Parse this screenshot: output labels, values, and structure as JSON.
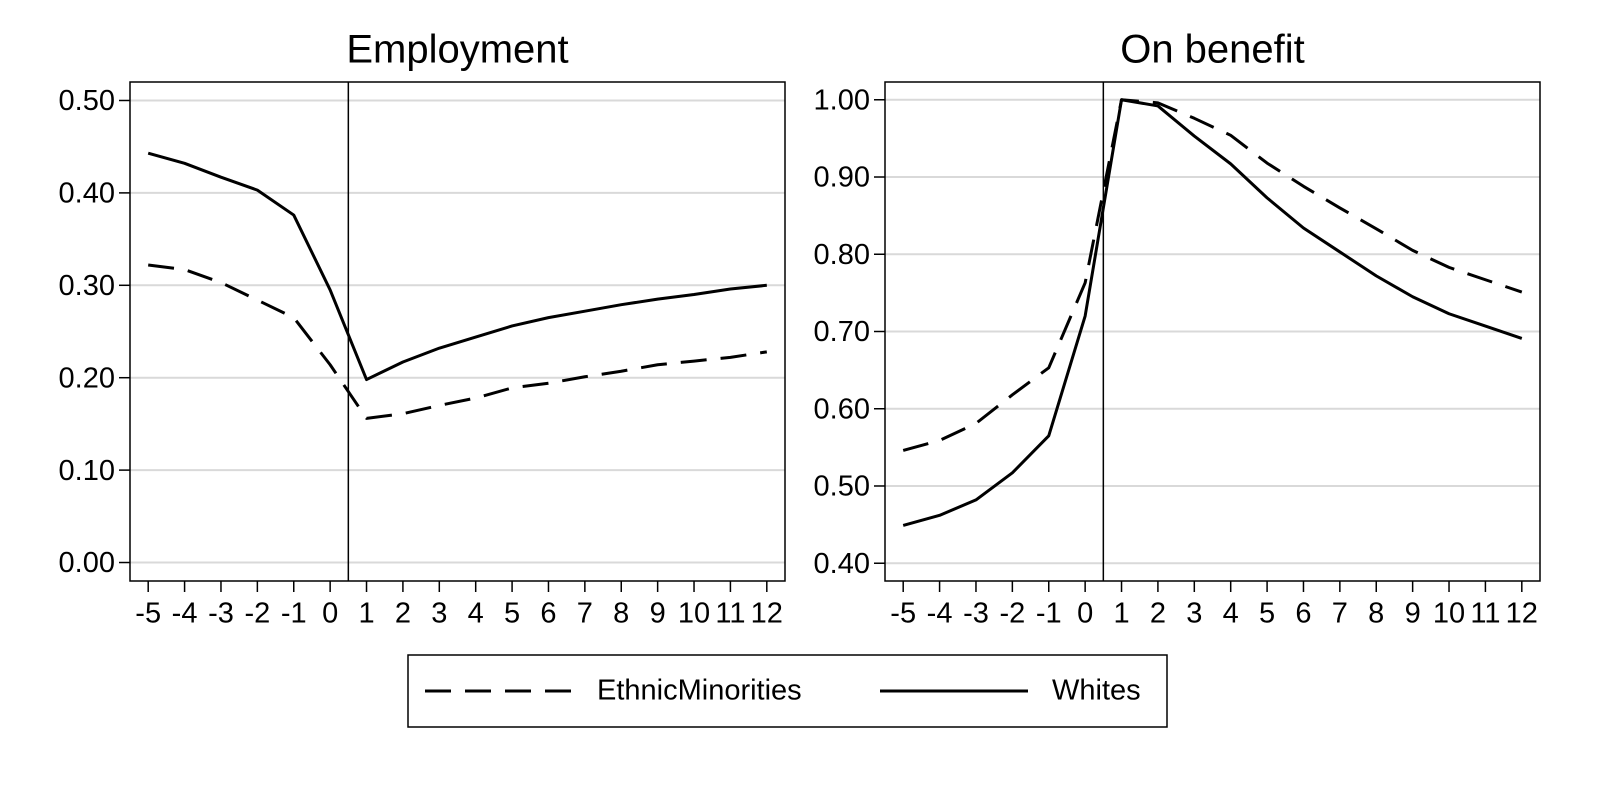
{
  "chart_data": [
    {
      "type": "line",
      "title": "Employment",
      "x": [
        -5,
        -4,
        -3,
        -2,
        -1,
        0,
        1,
        2,
        3,
        4,
        5,
        6,
        7,
        8,
        9,
        10,
        11,
        12
      ],
      "xlim": [
        -5.5,
        12.5
      ],
      "xticks": [
        -5,
        -4,
        -3,
        -2,
        -1,
        0,
        1,
        2,
        3,
        4,
        5,
        6,
        7,
        8,
        9,
        10,
        11,
        12
      ],
      "ylim": [
        -0.02,
        0.52
      ],
      "yticks": [
        {
          "value": 0,
          "label": "0.00"
        },
        {
          "value": 0.1,
          "label": "0.10"
        },
        {
          "value": 0.2,
          "label": "0.20"
        },
        {
          "value": 0.3,
          "label": "0.30"
        },
        {
          "value": 0.4,
          "label": "0.40"
        },
        {
          "value": 0.5,
          "label": "0.50"
        }
      ],
      "grid": true,
      "xline": 0.5,
      "series": [
        {
          "name": "EthnicMinorities",
          "color": "#000000",
          "style": "dashed",
          "values": [
            0.322,
            0.317,
            0.303,
            0.284,
            0.265,
            0.214,
            0.156,
            0.161,
            0.17,
            0.178,
            0.189,
            0.194,
            0.201,
            0.207,
            0.214,
            0.218,
            0.222,
            0.228
          ]
        },
        {
          "name": "Whites",
          "color": "#000000",
          "style": "solid",
          "values": [
            0.443,
            0.432,
            0.417,
            0.403,
            0.376,
            0.295,
            0.198,
            0.217,
            0.232,
            0.244,
            0.256,
            0.265,
            0.272,
            0.279,
            0.285,
            0.29,
            0.296,
            0.3
          ]
        }
      ]
    },
    {
      "type": "line",
      "title": "On benefit",
      "x": [
        -5,
        -4,
        -3,
        -2,
        -1,
        0,
        1,
        2,
        3,
        4,
        5,
        6,
        7,
        8,
        9,
        10,
        11,
        12
      ],
      "xlim": [
        -5.5,
        12.5
      ],
      "xticks": [
        -5,
        -4,
        -3,
        -2,
        -1,
        0,
        1,
        2,
        3,
        4,
        5,
        6,
        7,
        8,
        9,
        10,
        11,
        12
      ],
      "ylim": [
        0.377,
        1.023
      ],
      "yticks": [
        {
          "value": 0.4,
          "label": "0.40"
        },
        {
          "value": 0.5,
          "label": "0.50"
        },
        {
          "value": 0.6,
          "label": "0.60"
        },
        {
          "value": 0.7,
          "label": "0.70"
        },
        {
          "value": 0.8,
          "label": "0.80"
        },
        {
          "value": 0.9,
          "label": "0.90"
        },
        {
          "value": 1.0,
          "label": "1.00"
        }
      ],
      "grid": true,
      "xline": 0.5,
      "series": [
        {
          "name": "EthnicMinorities",
          "color": "#000000",
          "style": "dashed",
          "values": [
            0.546,
            0.559,
            0.581,
            0.618,
            0.653,
            0.763,
            1.0,
            0.996,
            0.976,
            0.954,
            0.918,
            0.888,
            0.86,
            0.833,
            0.805,
            0.783,
            0.767,
            0.751
          ]
        },
        {
          "name": "Whites",
          "color": "#000000",
          "style": "solid",
          "values": [
            0.449,
            0.462,
            0.482,
            0.517,
            0.565,
            0.72,
            1.0,
            0.992,
            0.953,
            0.917,
            0.873,
            0.834,
            0.803,
            0.772,
            0.745,
            0.723,
            0.707,
            0.691
          ]
        }
      ]
    }
  ]
}
